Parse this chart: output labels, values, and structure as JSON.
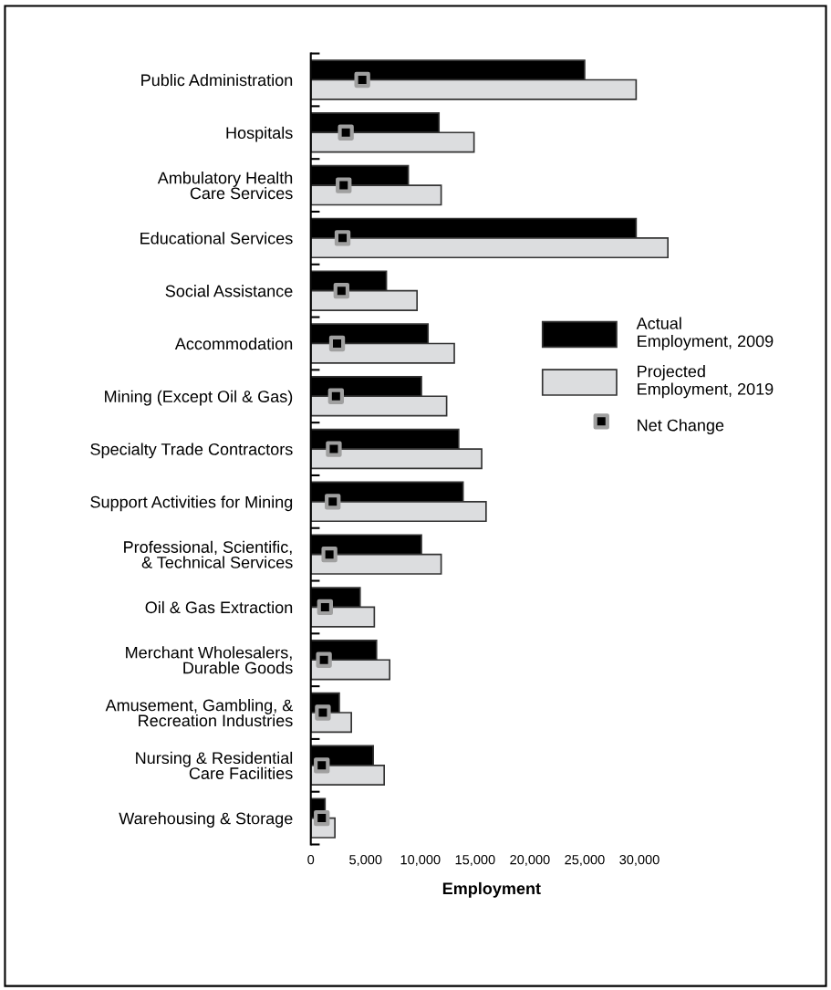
{
  "chart_data": {
    "type": "bar",
    "orientation": "horizontal",
    "xlabel": "Employment",
    "categories": [
      "Public Administration",
      "Hospitals",
      "Ambulatory Health\nCare Services",
      "Educational Services",
      "Social Assistance",
      "Accommodation",
      "Mining (Except Oil & Gas)",
      "Specialty Trade Contractors",
      "Support Activities for Mining",
      "Professional, Scientific,\n& Technical Services",
      "Oil & Gas Extraction",
      "Merchant Wholesalers,\nDurable Goods",
      "Amusement, Gambling, &\nRecreation Industries",
      "Nursing & Residential\nCare Facilities",
      "Warehousing & Storage"
    ],
    "series": [
      {
        "name": "Actual\nEmployment, 2009",
        "color": "#000000",
        "values": [
          25000,
          11700,
          8900,
          29700,
          6900,
          10700,
          10100,
          13500,
          13900,
          10100,
          4500,
          6000,
          2600,
          5700,
          1300
        ]
      },
      {
        "name": "Projected\nEmployment, 2019",
        "color": "#dcdddf",
        "values": [
          29700,
          14900,
          11900,
          32600,
          9700,
          13100,
          12400,
          15600,
          16000,
          11900,
          5800,
          7200,
          3700,
          6700,
          2200
        ]
      },
      {
        "name": "Net Change",
        "type": "scatter",
        "marker": "square",
        "color": "#000000",
        "values": [
          4700,
          3200,
          3000,
          2900,
          2800,
          2400,
          2300,
          2100,
          2000,
          1700,
          1300,
          1200,
          1100,
          1000,
          1000
        ]
      }
    ],
    "xlim": [
      0,
      33000
    ],
    "xticks": [
      {
        "value": 0,
        "label": "0"
      },
      {
        "value": 5000,
        "label": "5,000"
      },
      {
        "value": 10000,
        "label": "10,000"
      },
      {
        "value": 15000,
        "label": "15,000"
      },
      {
        "value": 20000,
        "label": "20,000"
      },
      {
        "value": 25000,
        "label": "25,000"
      },
      {
        "value": 30000,
        "label": "30,000"
      }
    ],
    "legend": "right",
    "grid": false
  }
}
